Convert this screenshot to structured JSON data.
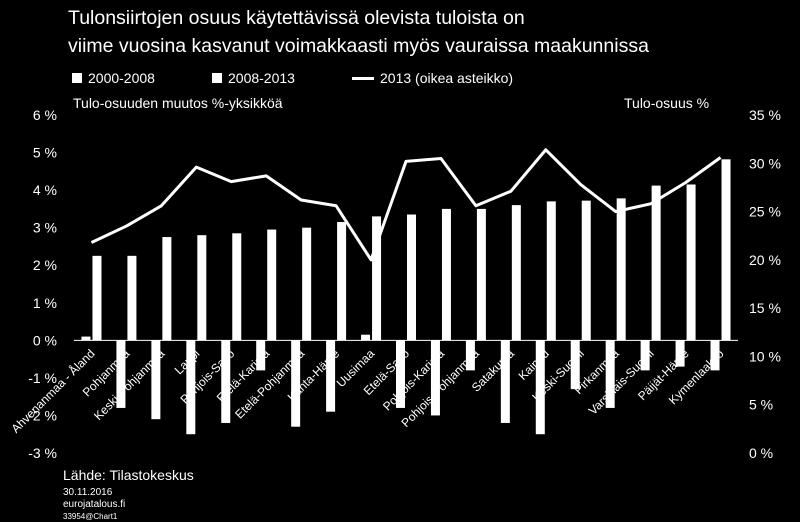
{
  "title_line1": "Tulonsiirtojen osuus käytettävissä olevista tuloista on",
  "title_line2": "viime vuosina kasvanut voimakkaasti myös vauraissa maakunnissa",
  "legend": {
    "series1": "2000-2008",
    "series2": "2008-2013",
    "series3": "2013 (oikea asteikko)"
  },
  "left_axis_title": "Tulo-osuuden muutos %-yksikköä",
  "right_axis_title": "Tulo-osuus %",
  "source": "Lähde: Tilastokeskus",
  "date": "30.11.2016",
  "website": "eurojatalous.fi",
  "chart_id": "33954@Chart1",
  "colors": {
    "background": "#000000",
    "foreground": "#ffffff"
  },
  "chart_data": {
    "type": "bar",
    "categories": [
      "Ahvenanmaa - Åland",
      "Pohjanmaa",
      "Keski-Pohjanmaa",
      "Lappi",
      "Pohjois-Savo",
      "Etelä-Karjala",
      "Etelä-Pohjanmaa",
      "Kanta-Häme",
      "Uusimaa",
      "Etelä-Savo",
      "Pohjois-Karjala",
      "Pohjois-Pohjanmaa",
      "Satakunta",
      "Kainuu",
      "Keski-Suomi",
      "Pirkanmaa",
      "Varsinais-Suomi",
      "Päijät-Häme",
      "Kymenlaakso"
    ],
    "series": [
      {
        "name": "2000-2008",
        "type": "bar",
        "axis": "left",
        "values": [
          0.1,
          -1.8,
          -2.1,
          -2.5,
          -2.2,
          -0.8,
          -2.3,
          -1.9,
          0.15,
          -1.8,
          -2.0,
          -0.8,
          -2.2,
          -2.5,
          -1.3,
          -1.8,
          -0.8,
          -0.7,
          -0.8
        ]
      },
      {
        "name": "2008-2013",
        "type": "bar",
        "axis": "left",
        "values": [
          2.25,
          2.25,
          2.75,
          2.8,
          2.85,
          2.95,
          3.0,
          3.15,
          3.3,
          3.35,
          3.5,
          3.5,
          3.6,
          3.7,
          3.72,
          3.78,
          4.12,
          4.15,
          4.82
        ]
      },
      {
        "name": "2013 (oikea asteikko)",
        "type": "line",
        "axis": "right",
        "values": [
          21.8,
          23.5,
          25.6,
          29.6,
          28.1,
          28.7,
          26.2,
          25.6,
          20.0,
          30.2,
          30.5,
          25.6,
          27.1,
          31.4,
          27.8,
          25.0,
          25.8,
          28.0,
          30.6
        ]
      }
    ],
    "y_left": {
      "min": -3,
      "max": 6,
      "step": 1,
      "tick_labels": [
        "-3 %",
        "-2 %",
        "-1 %",
        "0 %",
        "1 %",
        "2 %",
        "3 %",
        "4 %",
        "5 %",
        "6 %"
      ]
    },
    "y_right": {
      "min": 0,
      "max": 35,
      "step": 5,
      "tick_labels": [
        "0 %",
        "5 %",
        "10 %",
        "15 %",
        "20 %",
        "25 %",
        "30 %",
        "35 %"
      ]
    },
    "xlabel": "",
    "ylabel": "Tulo-osuuden muutos %-yksikköä",
    "ylabel_right": "Tulo-osuus %",
    "grid": false,
    "legend_position": "top"
  }
}
